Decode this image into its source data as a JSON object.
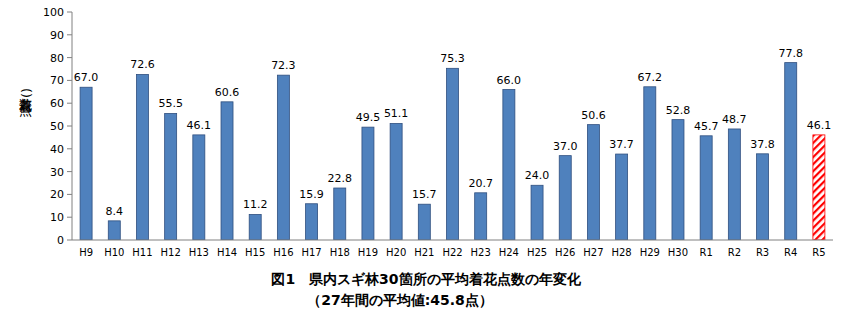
{
  "chart_data": {
    "type": "bar",
    "title": "図1　県内スギ林30箇所の平均着花点数の年変化",
    "subtitle": "（27年間の平均値:45.8点）",
    "y_label": "着花点数(点)",
    "categories": [
      "H9",
      "H10",
      "H11",
      "H12",
      "H13",
      "H14",
      "H15",
      "H16",
      "H17",
      "H18",
      "H19",
      "H20",
      "H21",
      "H22",
      "H23",
      "H24",
      "H25",
      "H26",
      "H27",
      "H28",
      "H29",
      "H30",
      "R1",
      "R2",
      "R3",
      "R4",
      "R5"
    ],
    "values": [
      67.0,
      8.4,
      72.6,
      55.5,
      46.1,
      60.6,
      11.2,
      72.3,
      15.9,
      22.8,
      49.5,
      51.1,
      15.7,
      75.3,
      20.7,
      66.0,
      24.0,
      37.0,
      50.6,
      37.7,
      67.2,
      52.8,
      45.7,
      48.7,
      37.8,
      77.8,
      46.1
    ],
    "value_labels": [
      "67.0",
      "8.4",
      "72.6",
      "55.5",
      "46.1",
      "60.6",
      "11.2",
      "72.3",
      "15.9",
      "22.8",
      "49.5",
      "51.1",
      "15.7",
      "75.3",
      "20.7",
      "66.0",
      "24.0",
      "37.0",
      "50.6",
      "37.7",
      "67.2",
      "52.8",
      "45.7",
      "48.7",
      "37.8",
      "77.8",
      "46.1"
    ],
    "colors": [
      "#4f81bd",
      "#4f81bd",
      "#4f81bd",
      "#4f81bd",
      "#4f81bd",
      "#4f81bd",
      "#4f81bd",
      "#4f81bd",
      "#4f81bd",
      "#4f81bd",
      "#4f81bd",
      "#4f81bd",
      "#4f81bd",
      "#4f81bd",
      "#4f81bd",
      "#4f81bd",
      "#4f81bd",
      "#4f81bd",
      "#4f81bd",
      "#4f81bd",
      "#4f81bd",
      "#4f81bd",
      "#4f81bd",
      "#4f81bd",
      "#4f81bd",
      "#4f81bd",
      "#ff0000"
    ],
    "ylim": [
      0,
      100
    ],
    "yticks": [
      0,
      10,
      20,
      30,
      40,
      50,
      60,
      70,
      80,
      90,
      100
    ],
    "grid": false,
    "data_labels": true
  }
}
